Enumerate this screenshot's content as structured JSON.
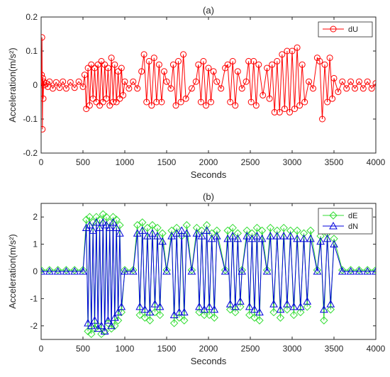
{
  "chart_data": [
    {
      "type": "line",
      "title": "(a)",
      "xlabel": "Seconds",
      "ylabel": "Acceleration(m/s²)",
      "xlim": [
        0,
        4000
      ],
      "ylim": [
        -0.2,
        0.2
      ],
      "xticks": [
        "0",
        "500",
        "1000",
        "1500",
        "2000",
        "2500",
        "3000",
        "3500",
        "4000"
      ],
      "yticks": [
        "0.2",
        "0.1",
        "0",
        "-0.1",
        "-0.2"
      ],
      "grid": false,
      "legend": "top-right",
      "marker": "circle",
      "series": [
        {
          "name": "dU",
          "color": "#ff0000",
          "x": [
            0,
            5,
            10,
            15,
            20,
            25,
            30,
            40,
            60,
            80,
            100,
            140,
            180,
            220,
            260,
            300,
            350,
            400,
            450,
            500,
            520,
            540,
            560,
            580,
            600,
            620,
            640,
            660,
            680,
            700,
            720,
            740,
            760,
            780,
            800,
            820,
            840,
            860,
            880,
            900,
            920,
            940,
            960,
            980,
            1000,
            1050,
            1100,
            1150,
            1200,
            1230,
            1260,
            1290,
            1320,
            1350,
            1380,
            1410,
            1440,
            1470,
            1500,
            1550,
            1580,
            1610,
            1640,
            1670,
            1700,
            1730,
            1800,
            1850,
            1880,
            1910,
            1940,
            1970,
            2000,
            2030,
            2060,
            2100,
            2150,
            2200,
            2230,
            2260,
            2290,
            2320,
            2350,
            2400,
            2450,
            2480,
            2510,
            2540,
            2570,
            2600,
            2650,
            2700,
            2730,
            2760,
            2790,
            2820,
            2850,
            2880,
            2910,
            2940,
            2970,
            3000,
            3030,
            3060,
            3090,
            3120,
            3150,
            3200,
            3250,
            3300,
            3330,
            3360,
            3390,
            3420,
            3450,
            3480,
            3500,
            3550,
            3600,
            3650,
            3700,
            3750,
            3800,
            3850,
            3900,
            3950,
            4000
          ],
          "y": [
            0.0,
            0.03,
            0.14,
            -0.13,
            0.02,
            -0.04,
            0.01,
            0.0,
            0.005,
            -0.005,
            0.01,
            -0.01,
            0.008,
            -0.008,
            0.01,
            -0.01,
            0.008,
            -0.008,
            0.01,
            -0.005,
            0.03,
            -0.07,
            0.05,
            -0.06,
            0.06,
            -0.04,
            0.05,
            -0.05,
            0.06,
            -0.06,
            0.07,
            -0.05,
            0.06,
            -0.04,
            0.05,
            -0.06,
            0.08,
            -0.05,
            0.06,
            -0.05,
            0.04,
            -0.04,
            0.05,
            -0.03,
            0.01,
            -0.01,
            0.01,
            -0.01,
            0.04,
            0.09,
            -0.05,
            0.07,
            -0.06,
            0.08,
            -0.05,
            0.06,
            -0.05,
            0.04,
            0.01,
            -0.01,
            0.06,
            -0.06,
            0.07,
            -0.05,
            0.09,
            -0.04,
            -0.01,
            0.01,
            0.06,
            -0.05,
            0.07,
            -0.06,
            0.05,
            -0.05,
            0.04,
            0.01,
            -0.01,
            0.05,
            0.06,
            -0.05,
            0.07,
            -0.06,
            0.04,
            -0.01,
            0.01,
            0.07,
            -0.05,
            0.07,
            -0.06,
            0.06,
            -0.03,
            0.05,
            -0.04,
            0.06,
            -0.08,
            0.07,
            -0.08,
            0.09,
            -0.07,
            0.1,
            -0.08,
            0.1,
            -0.07,
            0.11,
            -0.06,
            0.06,
            -0.05,
            0.01,
            -0.01,
            0.08,
            0.07,
            -0.1,
            0.06,
            -0.05,
            0.08,
            -0.04,
            0.02,
            -0.02,
            0.01,
            -0.01,
            0.01,
            -0.01,
            0.01,
            -0.01,
            0.01,
            -0.01,
            0.005
          ]
        }
      ]
    },
    {
      "type": "line",
      "title": "(b)",
      "xlabel": "Seconds",
      "ylabel": "Acceleration(m/s²)",
      "xlim": [
        0,
        4000
      ],
      "ylim": [
        -2.5,
        2.5
      ],
      "xticks": [
        "0",
        "500",
        "1000",
        "1500",
        "2000",
        "2500",
        "3000",
        "3500",
        "4000"
      ],
      "yticks": [
        "2",
        "1",
        "0",
        "-1",
        "-2"
      ],
      "grid": false,
      "legend": "top-right",
      "series": [
        {
          "name": "dE",
          "color": "#33dd33",
          "marker": "diamond",
          "x": [
            0,
            100,
            200,
            300,
            400,
            500,
            540,
            560,
            580,
            600,
            620,
            640,
            660,
            680,
            700,
            720,
            740,
            760,
            780,
            800,
            820,
            840,
            860,
            880,
            900,
            920,
            940,
            960,
            1000,
            1100,
            1150,
            1180,
            1210,
            1240,
            1270,
            1300,
            1330,
            1360,
            1390,
            1420,
            1450,
            1500,
            1560,
            1590,
            1620,
            1650,
            1680,
            1710,
            1740,
            1800,
            1860,
            1890,
            1920,
            1950,
            1980,
            2010,
            2040,
            2070,
            2100,
            2200,
            2230,
            2260,
            2290,
            2320,
            2350,
            2380,
            2400,
            2460,
            2490,
            2520,
            2550,
            2580,
            2610,
            2640,
            2700,
            2740,
            2780,
            2820,
            2860,
            2900,
            2940,
            2980,
            3020,
            3060,
            3100,
            3140,
            3180,
            3220,
            3300,
            3340,
            3380,
            3420,
            3460,
            3500,
            3600,
            3700,
            3800,
            3900,
            4000
          ],
          "y": [
            0.05,
            0.05,
            0.05,
            0.05,
            0.05,
            0.05,
            1.9,
            -2.2,
            2.0,
            -2.3,
            1.8,
            -2.1,
            2.0,
            -2.0,
            1.9,
            -2.3,
            2.1,
            -2.2,
            2.0,
            -1.9,
            1.8,
            -2.1,
            2.0,
            -2.0,
            1.9,
            -1.8,
            1.7,
            -1.5,
            0.05,
            0.05,
            1.7,
            -1.6,
            1.8,
            -1.7,
            1.6,
            -1.8,
            1.7,
            -1.5,
            1.6,
            -1.6,
            1.4,
            0.05,
            1.5,
            -1.9,
            1.6,
            -1.7,
            1.3,
            -1.8,
            1.7,
            0.05,
            1.6,
            -1.5,
            1.5,
            -1.6,
            1.7,
            -1.6,
            1.4,
            -1.7,
            1.5,
            0.05,
            1.5,
            -1.4,
            1.6,
            -1.5,
            1.4,
            -1.3,
            0.05,
            1.5,
            -1.6,
            1.4,
            -1.7,
            1.6,
            -1.8,
            1.5,
            0.05,
            1.6,
            -1.5,
            1.5,
            -1.7,
            1.6,
            -1.4,
            1.5,
            -1.6,
            1.5,
            -1.5,
            1.4,
            -1.3,
            1.5,
            0.05,
            1.3,
            -1.8,
            1.4,
            -1.4,
            1.2,
            0.05,
            0.05,
            0.05,
            0.05,
            0.05
          ]
        },
        {
          "name": "dN",
          "color": "#0000dd",
          "marker": "triangle",
          "x": [
            0,
            100,
            200,
            300,
            400,
            500,
            540,
            560,
            580,
            600,
            620,
            640,
            660,
            680,
            700,
            720,
            740,
            760,
            780,
            800,
            820,
            840,
            860,
            880,
            900,
            920,
            940,
            960,
            1000,
            1100,
            1150,
            1180,
            1210,
            1240,
            1270,
            1300,
            1330,
            1360,
            1390,
            1420,
            1450,
            1500,
            1560,
            1590,
            1620,
            1650,
            1680,
            1710,
            1740,
            1800,
            1860,
            1890,
            1920,
            1950,
            1980,
            2010,
            2040,
            2070,
            2100,
            2200,
            2230,
            2260,
            2290,
            2320,
            2350,
            2380,
            2400,
            2460,
            2490,
            2520,
            2550,
            2580,
            2610,
            2640,
            2700,
            2740,
            2780,
            2820,
            2860,
            2900,
            2940,
            2980,
            3020,
            3060,
            3100,
            3140,
            3180,
            3220,
            3300,
            3340,
            3380,
            3420,
            3460,
            3500,
            3600,
            3700,
            3800,
            3900,
            4000
          ],
          "y": [
            0.0,
            0.0,
            0.0,
            0.0,
            0.0,
            0.0,
            1.6,
            -1.9,
            1.7,
            -2.0,
            1.5,
            -1.8,
            1.8,
            -2.1,
            1.6,
            -2.0,
            1.8,
            -2.2,
            1.7,
            -1.8,
            1.6,
            -2.0,
            1.8,
            -1.7,
            1.6,
            -1.5,
            1.4,
            -1.3,
            0.0,
            0.0,
            1.4,
            -1.3,
            1.5,
            -1.4,
            1.3,
            -1.5,
            1.4,
            -1.2,
            1.3,
            -1.3,
            1.1,
            0.0,
            1.3,
            -1.6,
            1.4,
            -1.5,
            1.5,
            -1.5,
            1.4,
            0.0,
            1.4,
            -1.3,
            1.3,
            -1.4,
            1.5,
            -1.3,
            1.2,
            -1.4,
            1.3,
            0.0,
            1.2,
            -1.2,
            1.3,
            -1.3,
            1.2,
            -1.1,
            0.0,
            1.3,
            -1.3,
            1.2,
            -1.4,
            1.3,
            -1.5,
            1.2,
            0.0,
            1.3,
            -1.2,
            1.3,
            -1.4,
            1.3,
            -1.2,
            1.3,
            -1.3,
            1.2,
            -1.3,
            1.2,
            -1.1,
            1.2,
            0.0,
            1.1,
            -1.4,
            1.2,
            -1.2,
            1.0,
            0.0,
            0.0,
            0.0,
            0.0,
            0.0
          ]
        }
      ]
    }
  ]
}
